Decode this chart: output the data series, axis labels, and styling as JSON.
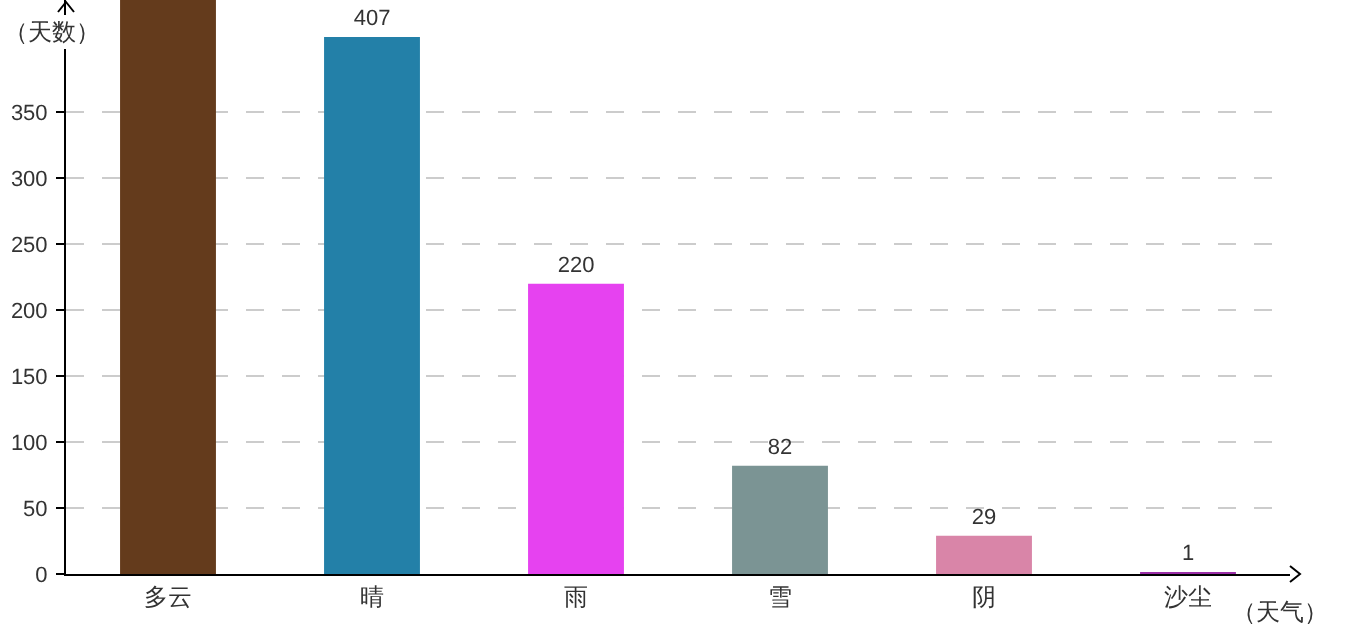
{
  "chart_data": {
    "type": "bar",
    "xlabel": "（天气）",
    "ylabel": "（天数）",
    "categories": [
      "多云",
      "晴",
      "雨",
      "雪",
      "阴",
      "沙尘"
    ],
    "values": [
      435,
      407,
      220,
      82,
      29,
      1
    ],
    "value_labels": [
      null,
      "407",
      "220",
      "82",
      "29",
      "1"
    ],
    "colors": [
      "#643b1c",
      "#2380a8",
      "#e642f0",
      "#7b9494",
      "#d985a8",
      "#9b2fa8"
    ],
    "ylim": [
      0,
      435
    ],
    "yticks": [
      0,
      50,
      100,
      150,
      200,
      250,
      300,
      350
    ],
    "grid": "y"
  }
}
